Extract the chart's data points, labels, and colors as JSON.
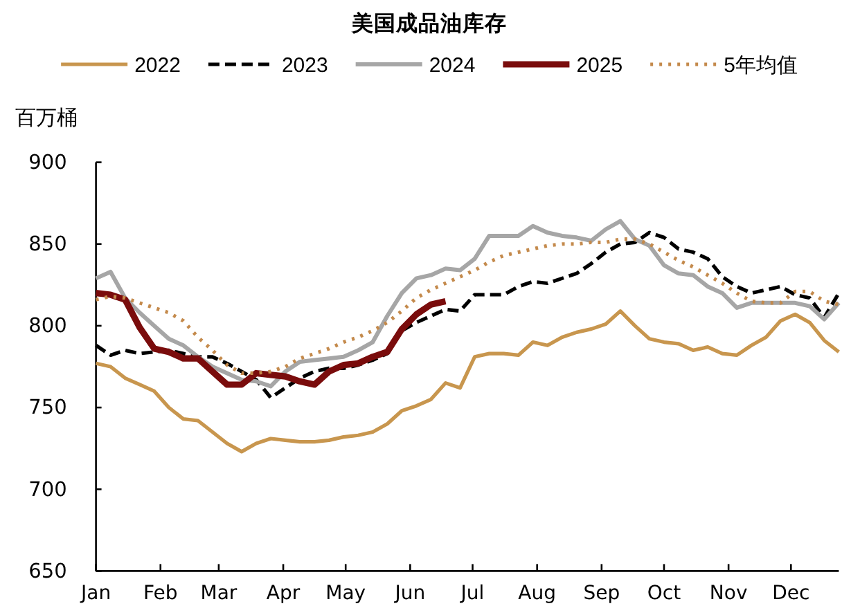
{
  "chart_data": {
    "type": "line",
    "title": "美国成品油库存",
    "ylabel": "百万桶",
    "x": [
      "--01-01",
      "--01-08",
      "--01-15",
      "--01-22",
      "--01-29",
      "--02-05",
      "--02-12",
      "--02-19",
      "--02-26",
      "--03-05",
      "--03-12",
      "--03-19",
      "--03-26",
      "--04-02",
      "--04-09",
      "--04-16",
      "--04-23",
      "--04-30",
      "--05-07",
      "--05-14",
      "--05-21",
      "--05-28",
      "--06-04",
      "--06-11",
      "--06-18",
      "--06-25",
      "--07-02",
      "--07-09",
      "--07-16",
      "--07-23",
      "--07-30",
      "--08-06",
      "--08-13",
      "--08-20",
      "--08-27",
      "--09-03",
      "--09-10",
      "--09-17",
      "--09-24",
      "--10-01",
      "--10-08",
      "--10-15",
      "--10-22",
      "--10-29",
      "--11-05",
      "--11-12",
      "--11-19",
      "--11-26",
      "--12-03",
      "--12-10",
      "--12-17",
      "--12-24"
    ],
    "xlim": [
      "--01-01",
      "--12-24"
    ],
    "xticks": [
      {
        "value": "--01-01",
        "label": "Jan"
      },
      {
        "value": "--02-01",
        "label": "Feb"
      },
      {
        "value": "--03-01",
        "label": "Mar"
      },
      {
        "value": "--04-01",
        "label": "Apr"
      },
      {
        "value": "--05-01",
        "label": "May"
      },
      {
        "value": "--06-01",
        "label": "Jun"
      },
      {
        "value": "--07-01",
        "label": "Jul"
      },
      {
        "value": "--08-01",
        "label": "Aug"
      },
      {
        "value": "--09-01",
        "label": "Sep"
      },
      {
        "value": "--10-01",
        "label": "Oct"
      },
      {
        "value": "--11-01",
        "label": "Nov"
      },
      {
        "value": "--12-01",
        "label": "Dec"
      }
    ],
    "ylim": [
      650,
      900
    ],
    "yticks": [
      650,
      700,
      750,
      800,
      850,
      900
    ],
    "grid": false,
    "legend": "top",
    "marker": "none",
    "series": [
      {
        "name": "2022",
        "color": "#c8964e",
        "line_style": "solid",
        "values": [
          777,
          775,
          768,
          764,
          760,
          750,
          743,
          742,
          735,
          728,
          723,
          728,
          731,
          730,
          729,
          729,
          730,
          732,
          733,
          735,
          740,
          748,
          751,
          755,
          765,
          762,
          781,
          783,
          783,
          782,
          790,
          788,
          793,
          796,
          798,
          801,
          809,
          800,
          792,
          790,
          789,
          785,
          787,
          783,
          782,
          788,
          793,
          803,
          807,
          802,
          791,
          784
        ]
      },
      {
        "name": "2023",
        "color": "#000000",
        "line_style": "dashed",
        "values": [
          788,
          782,
          785,
          783,
          784,
          785,
          783,
          781,
          781,
          777,
          772,
          767,
          756,
          762,
          768,
          772,
          774,
          774,
          776,
          779,
          783,
          797,
          802,
          806,
          810,
          809,
          819,
          819,
          819,
          824,
          827,
          826,
          829,
          832,
          838,
          845,
          850,
          851,
          857,
          854,
          847,
          845,
          841,
          830,
          824,
          820,
          822,
          824,
          819,
          817,
          805,
          820
        ]
      },
      {
        "name": "2024",
        "color": "#a6a6a6",
        "line_style": "solid",
        "values": [
          829,
          833,
          817,
          808,
          800,
          792,
          788,
          781,
          775,
          771,
          767,
          766,
          763,
          772,
          778,
          779,
          780,
          781,
          785,
          790,
          806,
          820,
          829,
          831,
          835,
          834,
          841,
          855,
          855,
          855,
          861,
          857,
          855,
          854,
          852,
          859,
          864,
          853,
          849,
          837,
          832,
          831,
          824,
          820,
          811,
          814,
          814,
          814,
          814,
          812,
          804,
          814
        ]
      },
      {
        "name": "2025",
        "color": "#7a0c0c",
        "line_style": "solid",
        "values": [
          820,
          819,
          816,
          799,
          786,
          784,
          780,
          780,
          772,
          764,
          764,
          771,
          770,
          769,
          766,
          764,
          772,
          776,
          777,
          781,
          784,
          798,
          807,
          813,
          815,
          null,
          null,
          null,
          null,
          null,
          null,
          null,
          null,
          null,
          null,
          null,
          null,
          null,
          null,
          null,
          null,
          null,
          null,
          null,
          null,
          null,
          null,
          null,
          null,
          null,
          null,
          null
        ]
      },
      {
        "name": "5年均值",
        "color": "#c48a4c",
        "line_style": "dotted",
        "values": [
          816,
          818,
          817,
          814,
          811,
          808,
          803,
          793,
          785,
          776,
          771,
          771,
          772,
          775,
          780,
          783,
          786,
          790,
          793,
          797,
          802,
          809,
          817,
          822,
          826,
          830,
          834,
          839,
          843,
          845,
          847,
          849,
          850,
          850,
          851,
          851,
          853,
          853,
          850,
          845,
          840,
          836,
          831,
          826,
          820,
          815,
          814,
          814,
          821,
          821,
          815,
          813
        ]
      }
    ]
  }
}
